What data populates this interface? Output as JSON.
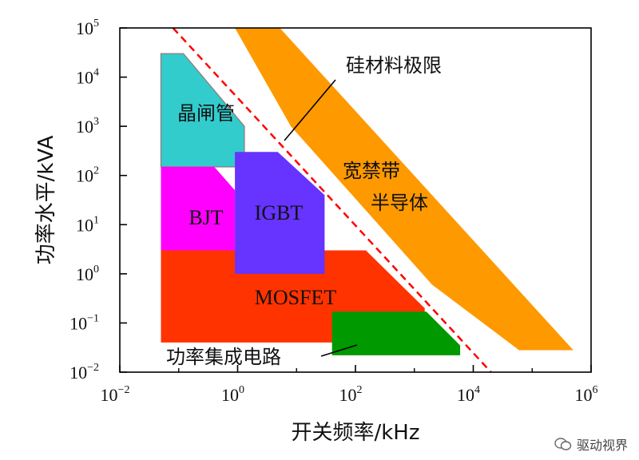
{
  "chart_data": {
    "type": "area",
    "xlabel": "开关频率/kHz",
    "ylabel": "功率水平/kVA",
    "x_scale": "log",
    "y_scale": "log",
    "xlim": [
      0.01,
      1000000
    ],
    "ylim": [
      0.01,
      100000
    ],
    "x_ticks": [
      {
        "base": "10",
        "exp": "−2",
        "value": 0.01
      },
      {
        "base": "10",
        "exp": "0",
        "value": 1
      },
      {
        "base": "10",
        "exp": "2",
        "value": 100
      },
      {
        "base": "10",
        "exp": "4",
        "value": 10000
      },
      {
        "base": "10",
        "exp": "6",
        "value": 1000000
      }
    ],
    "y_ticks": [
      {
        "base": "10",
        "exp": "−2",
        "value": 0.01
      },
      {
        "base": "10",
        "exp": "−1",
        "value": 0.1
      },
      {
        "base": "10",
        "exp": "0",
        "value": 1
      },
      {
        "base": "10",
        "exp": "1",
        "value": 10
      },
      {
        "base": "10",
        "exp": "2",
        "value": 100
      },
      {
        "base": "10",
        "exp": "3",
        "value": 1000
      },
      {
        "base": "10",
        "exp": "4",
        "value": 10000
      },
      {
        "base": "10",
        "exp": "5",
        "value": 100000
      }
    ],
    "grid": false,
    "regions": [
      {
        "name": "宽禁带",
        "name2": "半导体",
        "color": "#FF9900",
        "polygon": [
          [
            0.9,
            100000
          ],
          [
            5.2,
            100000
          ],
          [
            500000,
            0.028
          ],
          [
            60000,
            0.028
          ],
          [
            2000,
            0.6
          ],
          [
            8,
            1000
          ]
        ]
      },
      {
        "name": "晶闸管",
        "color": "#33CCCC",
        "border": "#888888",
        "polygon": [
          [
            0.05,
            30000
          ],
          [
            0.12,
            30000
          ],
          [
            1.3,
            1000
          ],
          [
            1.3,
            150
          ],
          [
            0.05,
            150
          ]
        ]
      },
      {
        "name": "BJT",
        "color": "#FF00FF",
        "polygon": [
          [
            0.05,
            150
          ],
          [
            0.4,
            150
          ],
          [
            0.9,
            50
          ],
          [
            0.9,
            0.7
          ],
          [
            0.05,
            0.7
          ]
        ]
      },
      {
        "name": "MOSFET",
        "color": "#FF3300",
        "polygon": [
          [
            0.05,
            3
          ],
          [
            150,
            3
          ],
          [
            1500,
            0.2
          ],
          [
            1500,
            0.04
          ],
          [
            0.05,
            0.04
          ]
        ]
      },
      {
        "name": "IGBT",
        "color": "#6633FF",
        "polygon": [
          [
            0.9,
            300
          ],
          [
            4.8,
            300
          ],
          [
            30,
            40
          ],
          [
            30,
            1
          ],
          [
            0.9,
            1
          ]
        ]
      },
      {
        "name": "功率集成电路",
        "color": "#009900",
        "polygon": [
          [
            40,
            0.17
          ],
          [
            1600,
            0.17
          ],
          [
            6000,
            0.035
          ],
          [
            6000,
            0.022
          ],
          [
            40,
            0.022
          ]
        ]
      }
    ],
    "limit_line": {
      "name": "硅材料极限",
      "color": "#FF0000",
      "style": "dashed",
      "points": [
        [
          0.08,
          100000
        ],
        [
          20000,
          0.01
        ]
      ]
    }
  },
  "watermark": {
    "text": "驱动视界"
  }
}
